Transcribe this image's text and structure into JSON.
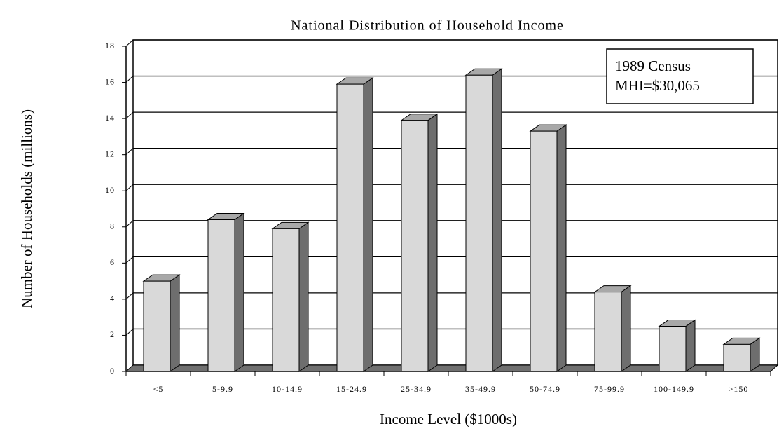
{
  "chart_data": {
    "type": "bar3d",
    "title": "National Distribution of Household Income",
    "xlabel": "Income Level ($1000s)",
    "ylabel": "Number of Households (millions)",
    "categories": [
      "<5",
      "5-9.9",
      "10-14.9",
      "15-24.9",
      "25-34.9",
      "35-49.9",
      "50-74.9",
      "75-99.9",
      "100-149.9",
      ">150"
    ],
    "values": [
      5.0,
      8.4,
      7.9,
      15.9,
      13.9,
      16.4,
      13.3,
      4.4,
      2.5,
      1.5
    ],
    "color": "#d9d9d9",
    "ylim": [
      0,
      18
    ],
    "yticks": [
      0,
      2,
      4,
      6,
      8,
      10,
      12,
      14,
      16,
      18
    ],
    "grid": true,
    "annotation": [
      "1989 Census",
      "MHI=$30,065"
    ]
  }
}
